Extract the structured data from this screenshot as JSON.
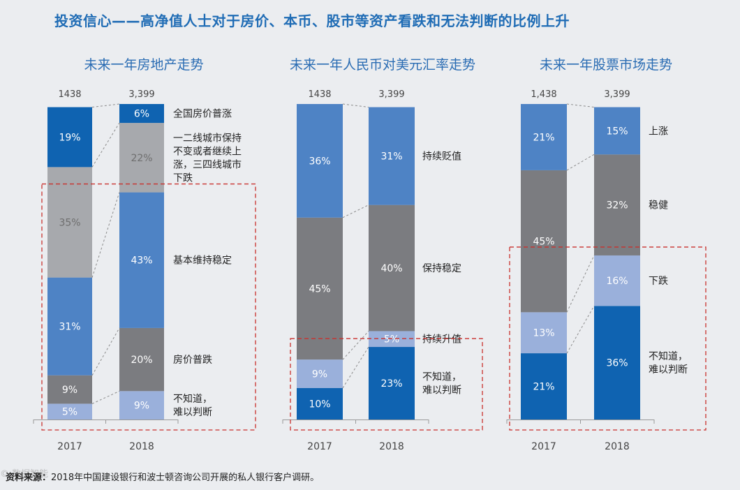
{
  "title": "投资信心——高净值人士对于房价、本币、股市等资产看跌和无法判断的比例上升",
  "footer": {
    "label": "资料来源：",
    "text": "2018年中国建设银行和波士顿咨询公司开展的私人银行客户调研。"
  },
  "colors": {
    "bg": "#ebedf0",
    "title": "#1f6cb5",
    "dashed_box": "#c9302c"
  },
  "chart_data": [
    {
      "type": "bar",
      "stacked": true,
      "title": "未来一年房地产走势",
      "categories": [
        "2017",
        "2018"
      ],
      "sample_sizes": [
        "1438",
        "3,399"
      ],
      "series": [
        {
          "name": "不知道，难以判断",
          "label_lines": [
            "不知道，",
            "难以判断"
          ],
          "color": "#9ab0db",
          "text_color": "#ffffff",
          "values": [
            5,
            9
          ]
        },
        {
          "name": "房价普跌",
          "label_lines": [
            "房价普跌"
          ],
          "color": "#7b7c80",
          "text_color": "#ffffff",
          "values": [
            9,
            20
          ]
        },
        {
          "name": "基本维持稳定",
          "label_lines": [
            "基本维持稳定"
          ],
          "color": "#4e83c5",
          "text_color": "#ffffff",
          "values": [
            31,
            43
          ]
        },
        {
          "name": "一二线城市保持不变或者继续上涨，三四线城市下跌",
          "label_lines": [
            "一二线城市保持",
            "不变或者继续上",
            "涨，三四线城市",
            "下跌"
          ],
          "color": "#a7a9ad",
          "text_color": "#6e6e6e",
          "values": [
            35,
            22
          ]
        },
        {
          "name": "全国房价普涨",
          "label_lines": [
            "全国房价普涨"
          ],
          "color": "#0f63b1",
          "text_color": "#ffffff",
          "values": [
            19,
            6
          ]
        }
      ],
      "highlight_series": [
        0,
        1,
        2
      ]
    },
    {
      "type": "bar",
      "stacked": true,
      "title": "未来一年人民币对美元汇率走势",
      "categories": [
        "2017",
        "2018"
      ],
      "sample_sizes": [
        "1438",
        "3,399"
      ],
      "series": [
        {
          "name": "不知道，难以判断",
          "label_lines": [
            "不知道，",
            "难以判断"
          ],
          "color": "#0f63b1",
          "text_color": "#ffffff",
          "values": [
            10,
            23
          ]
        },
        {
          "name": "持续升值",
          "label_lines": [
            "持续升值"
          ],
          "color": "#9ab0db",
          "text_color": "#ffffff",
          "values": [
            9,
            5
          ]
        },
        {
          "name": "保持稳定",
          "label_lines": [
            "保持稳定"
          ],
          "color": "#7b7c80",
          "text_color": "#ffffff",
          "values": [
            45,
            40
          ]
        },
        {
          "name": "持续贬值",
          "label_lines": [
            "持续贬值"
          ],
          "color": "#4e83c5",
          "text_color": "#ffffff",
          "values": [
            36,
            31
          ]
        }
      ],
      "highlight_series": [
        0
      ]
    },
    {
      "type": "bar",
      "stacked": true,
      "title": "未来一年股票市场走势",
      "categories": [
        "2017",
        "2018"
      ],
      "sample_sizes": [
        "1,438",
        "3,399"
      ],
      "series": [
        {
          "name": "不知道，难以判断",
          "label_lines": [
            "不知道，",
            "难以判断"
          ],
          "color": "#0f63b1",
          "text_color": "#ffffff",
          "values": [
            21,
            36
          ]
        },
        {
          "name": "下跌",
          "label_lines": [
            "下跌"
          ],
          "color": "#9ab0db",
          "text_color": "#ffffff",
          "values": [
            13,
            16
          ]
        },
        {
          "name": "稳健",
          "label_lines": [
            "稳健"
          ],
          "color": "#7b7c80",
          "text_color": "#ffffff",
          "values": [
            45,
            32
          ]
        },
        {
          "name": "上涨",
          "label_lines": [
            "上涨"
          ],
          "color": "#4e83c5",
          "text_color": "#ffffff",
          "values": [
            21,
            15
          ]
        }
      ],
      "highlight_series": [
        0,
        1
      ]
    }
  ]
}
